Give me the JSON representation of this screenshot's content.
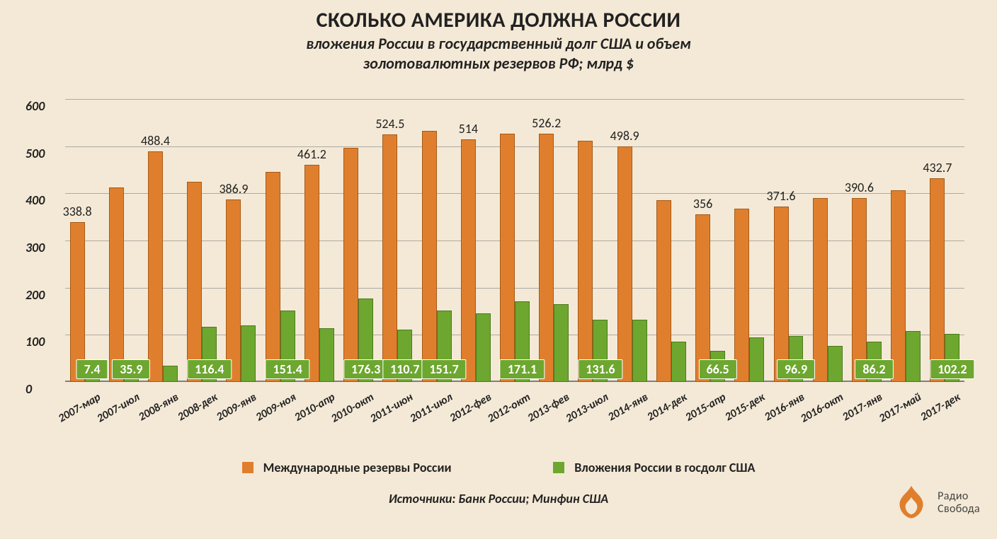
{
  "chart": {
    "type": "bar",
    "title": "СКОЛЬКО АМЕРИКА ДОЛЖНА РОССИИ",
    "subtitle_line1": "вложения России в государственный долг США и объем",
    "subtitle_line2": "золотовалютных резервов РФ;  млрд $",
    "background_color": "#f4e9d6",
    "grid_color": "#7f7f7f",
    "title_fontsize": 30,
    "subtitle_fontsize": 22,
    "yaxis": {
      "min": 0,
      "max": 600,
      "step": 100,
      "ticks": [
        0,
        100,
        200,
        300,
        400,
        500,
        600
      ],
      "label_fontsize": 18
    },
    "xaxis": {
      "label_fontsize": 16,
      "rotation_deg": -30
    },
    "bar_width_ratio": 0.38,
    "series": [
      {
        "key": "reserves",
        "label": "Международные резервы России",
        "color": "#df7f2e",
        "border_color": "#a65a15"
      },
      {
        "key": "us_debt",
        "label": "Вложения России в госдолг США",
        "color": "#6da72f",
        "border_color": "#4d7a20",
        "value_box_bg": "#6da72f",
        "value_box_text": "#ffffff"
      }
    ],
    "categories": [
      "2007-мар",
      "2007-июл",
      "2008-янв",
      "2008-дек",
      "2009-янв",
      "2009-ноя",
      "2010-апр",
      "2010-окт",
      "2011-июн",
      "2011-июл",
      "2012-фев",
      "2012-окт",
      "2013-фев",
      "2013-июл",
      "2014-янв",
      "2014-дек",
      "2015-апр",
      "2015-дек",
      "2016-янв",
      "2016-окт",
      "2017-янв",
      "2017-май",
      "2017-дек"
    ],
    "reserves_values": [
      338.8,
      413,
      488.4,
      425,
      386.9,
      445,
      461.2,
      497,
      524.5,
      533,
      514,
      526,
      526.2,
      512,
      498.9,
      386,
      356,
      368,
      371.6,
      390,
      390.6,
      406,
      432.7
    ],
    "us_debt_values": [
      7.4,
      35.9,
      35,
      116.4,
      120,
      151.4,
      114,
      176.3,
      110.7,
      151.7,
      145,
      171.1,
      165,
      131.6,
      132,
      86,
      66.5,
      94,
      96.9,
      76,
      86.2,
      108,
      102.2
    ],
    "reserves_shown_labels": {
      "0": "338.8",
      "2": "488.4",
      "4": "386.9",
      "6": "461.2",
      "8": "524.5",
      "10": "514",
      "12": "526.2",
      "14": "498.9",
      "16": "356",
      "18": "371.6",
      "20": "390.6",
      "22": "432.7"
    },
    "us_debt_shown_labels": {
      "0": "7.4",
      "1": "35.9",
      "3": "116.4",
      "5": "151.4",
      "7": "176.3",
      "8": "110.7",
      "9": "151.7",
      "11": "171.1",
      "13": "131.6",
      "16": "66.5",
      "18": "96.9",
      "20": "86.2",
      "22": "102.2"
    },
    "sources": "Источники: Банк России; Минфин США"
  },
  "logo": {
    "line1": "Радио",
    "line2": "Свобода"
  }
}
